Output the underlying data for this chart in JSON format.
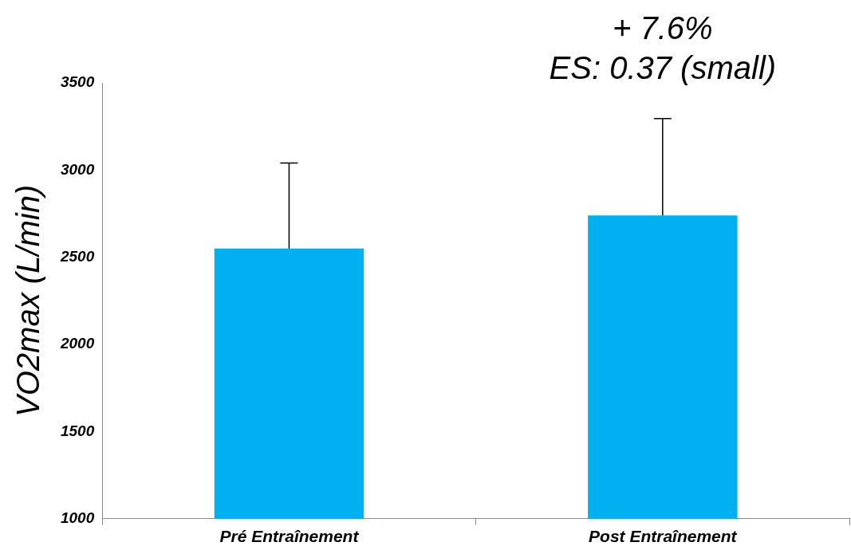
{
  "chart_data": {
    "type": "bar",
    "ylabel": "VO2max (L/min)",
    "categories": [
      "Pré Entraînement",
      "Post Entraînement"
    ],
    "values": [
      2550,
      2740
    ],
    "errors": [
      [
        2550,
        3040
      ],
      [
        2740,
        3295
      ]
    ],
    "color": "#00b0f0",
    "ylim": [
      1000,
      3500
    ],
    "yticks": [
      1000,
      1500,
      2000,
      2500,
      3000,
      3500
    ],
    "grid": false,
    "legend": false,
    "annotations": [
      "+ 7.6%",
      "ES: 0.37 (small)"
    ]
  }
}
